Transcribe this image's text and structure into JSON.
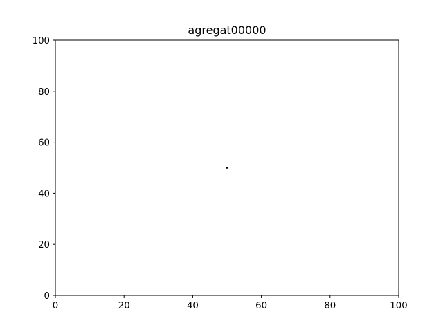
{
  "chart_data": {
    "type": "scatter",
    "title": "agregat00000",
    "xlabel": "",
    "ylabel": "",
    "xlim": [
      0,
      100
    ],
    "ylim": [
      0,
      100
    ],
    "xticks": [
      0,
      20,
      40,
      60,
      80,
      100
    ],
    "yticks": [
      0,
      20,
      40,
      60,
      80,
      100
    ],
    "grid": false,
    "series": [
      {
        "points": [
          {
            "x": 50,
            "y": 50
          }
        ],
        "color": "#000000"
      }
    ]
  }
}
